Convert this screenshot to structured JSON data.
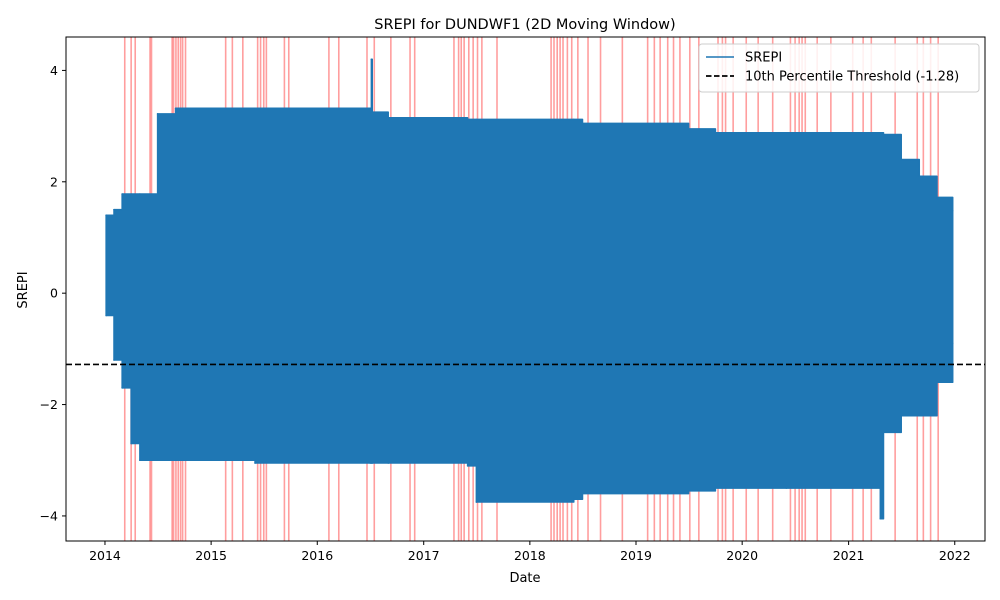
{
  "chart_data": {
    "type": "line",
    "title": "SREPI for DUNDWF1 (2D Moving Window)",
    "xlabel": "Date",
    "ylabel": "SREPI",
    "xlim": [
      "2013-08-20",
      "2022-04-15"
    ],
    "ylim": [
      -4.45,
      4.6
    ],
    "x_ticks": [
      "2014",
      "2015",
      "2016",
      "2017",
      "2018",
      "2019",
      "2020",
      "2021",
      "2022"
    ],
    "y_ticks": [
      -4,
      -2,
      0,
      2,
      4
    ],
    "y_tick_labels": [
      "−4",
      "−2",
      "0",
      "2",
      "4"
    ],
    "grid": false,
    "legend_position": "top-right",
    "colors": {
      "series": "#1f77b4",
      "threshold": "#000000",
      "drought_shading": "#ff0000"
    },
    "series": [
      {
        "name": "SREPI",
        "envelope": [
          {
            "date": "2014-01-05",
            "min": -0.4,
            "max": 1.4
          },
          {
            "date": "2014-02-01",
            "min": -1.2,
            "max": 1.5
          },
          {
            "date": "2014-03-01",
            "min": -1.7,
            "max": 1.78
          },
          {
            "date": "2014-04-01",
            "min": -2.7,
            "max": 1.78
          },
          {
            "date": "2014-05-01",
            "min": -3.0,
            "max": 1.78
          },
          {
            "date": "2014-07-01",
            "min": -3.0,
            "max": 3.22
          },
          {
            "date": "2014-09-01",
            "min": -3.0,
            "max": 3.32
          },
          {
            "date": "2015-01-01",
            "min": -3.0,
            "max": 3.32
          },
          {
            "date": "2015-06-01",
            "min": -3.05,
            "max": 3.32
          },
          {
            "date": "2016-07-01",
            "min": -3.05,
            "max": 3.32
          },
          {
            "date": "2016-07-05",
            "min": -3.05,
            "max": 4.2
          },
          {
            "date": "2016-07-08",
            "min": -3.05,
            "max": 3.25
          },
          {
            "date": "2016-09-01",
            "min": -3.05,
            "max": 3.15
          },
          {
            "date": "2017-06-01",
            "min": -3.1,
            "max": 3.12
          },
          {
            "date": "2017-07-01",
            "min": -3.75,
            "max": 3.12
          },
          {
            "date": "2018-06-01",
            "min": -3.7,
            "max": 3.12
          },
          {
            "date": "2018-07-01",
            "min": -3.6,
            "max": 3.05
          },
          {
            "date": "2019-07-01",
            "min": -3.55,
            "max": 2.95
          },
          {
            "date": "2019-10-01",
            "min": -3.5,
            "max": 2.88
          },
          {
            "date": "2020-06-01",
            "min": -3.5,
            "max": 2.88
          },
          {
            "date": "2021-04-20",
            "min": -4.05,
            "max": 2.88
          },
          {
            "date": "2021-05-01",
            "min": -2.5,
            "max": 2.85
          },
          {
            "date": "2021-07-01",
            "min": -2.2,
            "max": 2.4
          },
          {
            "date": "2021-09-01",
            "min": -2.2,
            "max": 2.1
          },
          {
            "date": "2021-11-01",
            "min": -1.6,
            "max": 1.72
          },
          {
            "date": "2021-12-25",
            "min": -0.9,
            "max": 1.48
          }
        ]
      },
      {
        "name": "10th Percentile Threshold (-1.28)",
        "type": "hline",
        "y": -1.28,
        "style": "dashed"
      }
    ],
    "drought_events": [
      "2014-03-10",
      "2014-04-01",
      "2014-04-15",
      "2014-06-05",
      "2014-06-10",
      "2014-08-20",
      "2014-08-25",
      "2014-09-02",
      "2014-09-10",
      "2014-09-18",
      "2014-09-25",
      "2014-10-05",
      "2015-02-20",
      "2015-03-15",
      "2015-04-20",
      "2015-06-10",
      "2015-06-20",
      "2015-07-01",
      "2015-07-10",
      "2015-09-10",
      "2015-09-25",
      "2016-02-10",
      "2016-03-15",
      "2016-06-20",
      "2016-07-15",
      "2016-09-10",
      "2016-11-15",
      "2016-12-01",
      "2017-04-15",
      "2017-05-01",
      "2017-05-10",
      "2017-05-20",
      "2017-06-05",
      "2017-06-20",
      "2017-07-05",
      "2017-07-20",
      "2017-09-10",
      "2018-03-15",
      "2018-03-25",
      "2018-04-05",
      "2018-04-15",
      "2018-04-25",
      "2018-05-10",
      "2018-05-25",
      "2018-06-15",
      "2018-07-20",
      "2018-09-01",
      "2018-11-15",
      "2019-02-10",
      "2019-03-05",
      "2019-03-25",
      "2019-04-20",
      "2019-05-10",
      "2019-06-01",
      "2019-07-05",
      "2019-08-05",
      "2019-10-10",
      "2019-10-25",
      "2019-11-05",
      "2019-12-01",
      "2020-01-15",
      "2020-02-25",
      "2020-04-15",
      "2020-06-15",
      "2020-07-01",
      "2020-07-15",
      "2020-07-25",
      "2020-08-05",
      "2020-09-15",
      "2020-11-01",
      "2021-01-15",
      "2021-02-20",
      "2021-03-20",
      "2021-06-10",
      "2021-08-25",
      "2021-09-15",
      "2021-10-10",
      "2021-11-05"
    ]
  }
}
